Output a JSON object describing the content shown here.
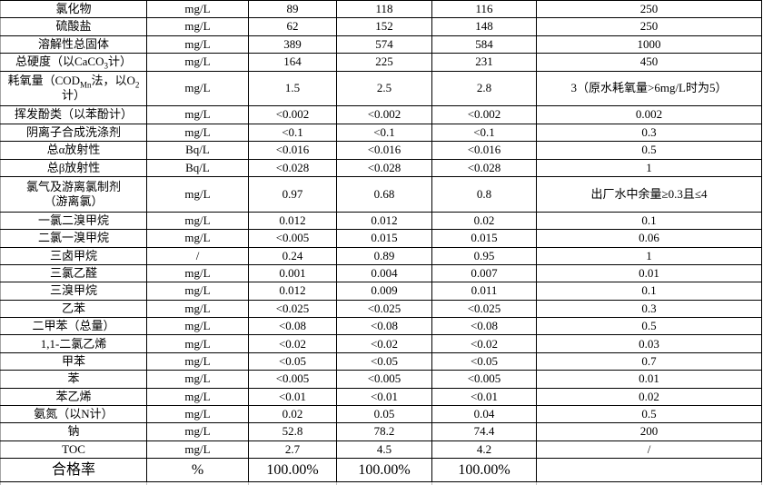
{
  "table": {
    "rows": [
      {
        "cells": [
          "氯化物",
          "mg/L",
          "89",
          "118",
          "116",
          "250"
        ]
      },
      {
        "cells": [
          "硫酸盐",
          "mg/L",
          "62",
          "152",
          "148",
          "250"
        ]
      },
      {
        "cells": [
          "溶解性总固体",
          "mg/L",
          "389",
          "574",
          "584",
          "1000"
        ]
      },
      {
        "cells": [
          "总硬度（以CaCO{3}计）",
          "mg/L",
          "164",
          "225",
          "231",
          "450"
        ]
      },
      {
        "cells": [
          "耗氧量（COD{Mn}法，以O{2}\n计）",
          "mg/L",
          "1.5",
          "2.5",
          "2.8",
          "3（原水耗氧量>6mg/L时为5）"
        ],
        "tall": true
      },
      {
        "cells": [
          "挥发酚类（以苯酚计）",
          "mg/L",
          "<0.002",
          "<0.002",
          "<0.002",
          "0.002"
        ]
      },
      {
        "cells": [
          "阴离子合成洗涤剂",
          "mg/L",
          "<0.1",
          "<0.1",
          "<0.1",
          "0.3"
        ]
      },
      {
        "cells": [
          "总α放射性",
          "Bq/L",
          "<0.016",
          "<0.016",
          "<0.016",
          "0.5"
        ]
      },
      {
        "cells": [
          "总β放射性",
          "Bq/L",
          "<0.028",
          "<0.028",
          "<0.028",
          "1"
        ]
      },
      {
        "cells": [
          "氯气及游离氯制剂\n（游离氯）",
          "mg/L",
          "0.97",
          "0.68",
          "0.8",
          "出厂水中余量≥0.3且≤4"
        ],
        "tall": true
      },
      {
        "cells": [
          "一氯二溴甲烷",
          "mg/L",
          "0.012",
          "0.012",
          "0.02",
          "0.1"
        ]
      },
      {
        "cells": [
          "二氯一溴甲烷",
          "mg/L",
          "<0.005",
          "0.015",
          "0.015",
          "0.06"
        ]
      },
      {
        "cells": [
          "三卤甲烷",
          "/",
          "0.24",
          "0.89",
          "0.95",
          "1"
        ]
      },
      {
        "cells": [
          "三氯乙醛",
          "mg/L",
          "0.001",
          "0.004",
          "0.007",
          "0.01"
        ]
      },
      {
        "cells": [
          "三溴甲烷",
          "mg/L",
          "0.012",
          "0.009",
          "0.011",
          "0.1"
        ]
      },
      {
        "cells": [
          "乙苯",
          "mg/L",
          "<0.025",
          "<0.025",
          "<0.025",
          "0.3"
        ]
      },
      {
        "cells": [
          "二甲苯（总量）",
          "mg/L",
          "<0.08",
          "<0.08",
          "<0.08",
          "0.5"
        ]
      },
      {
        "cells": [
          "1,1-二氯乙烯",
          "mg/L",
          "<0.02",
          "<0.02",
          "<0.02",
          "0.03"
        ]
      },
      {
        "cells": [
          "甲苯",
          "mg/L",
          "<0.05",
          "<0.05",
          "<0.05",
          "0.7"
        ]
      },
      {
        "cells": [
          "苯",
          "mg/L",
          "<0.005",
          "<0.005",
          "<0.005",
          "0.01"
        ]
      },
      {
        "cells": [
          "苯乙烯",
          "mg/L",
          "<0.01",
          "<0.01",
          "<0.01",
          "0.02"
        ]
      },
      {
        "cells": [
          "氨氮（以N计）",
          "mg/L",
          "0.02",
          "0.05",
          "0.04",
          "0.5"
        ]
      },
      {
        "cells": [
          "钠",
          "mg/L",
          "52.8",
          "78.2",
          "74.4",
          "200"
        ]
      },
      {
        "cells": [
          "TOC",
          "mg/L",
          "2.7",
          "4.5",
          "4.2",
          "/"
        ]
      },
      {
        "cells": [
          "合格率",
          "%",
          "100.00%",
          "100.00%",
          "100.00%",
          ""
        ],
        "big": true
      }
    ]
  }
}
